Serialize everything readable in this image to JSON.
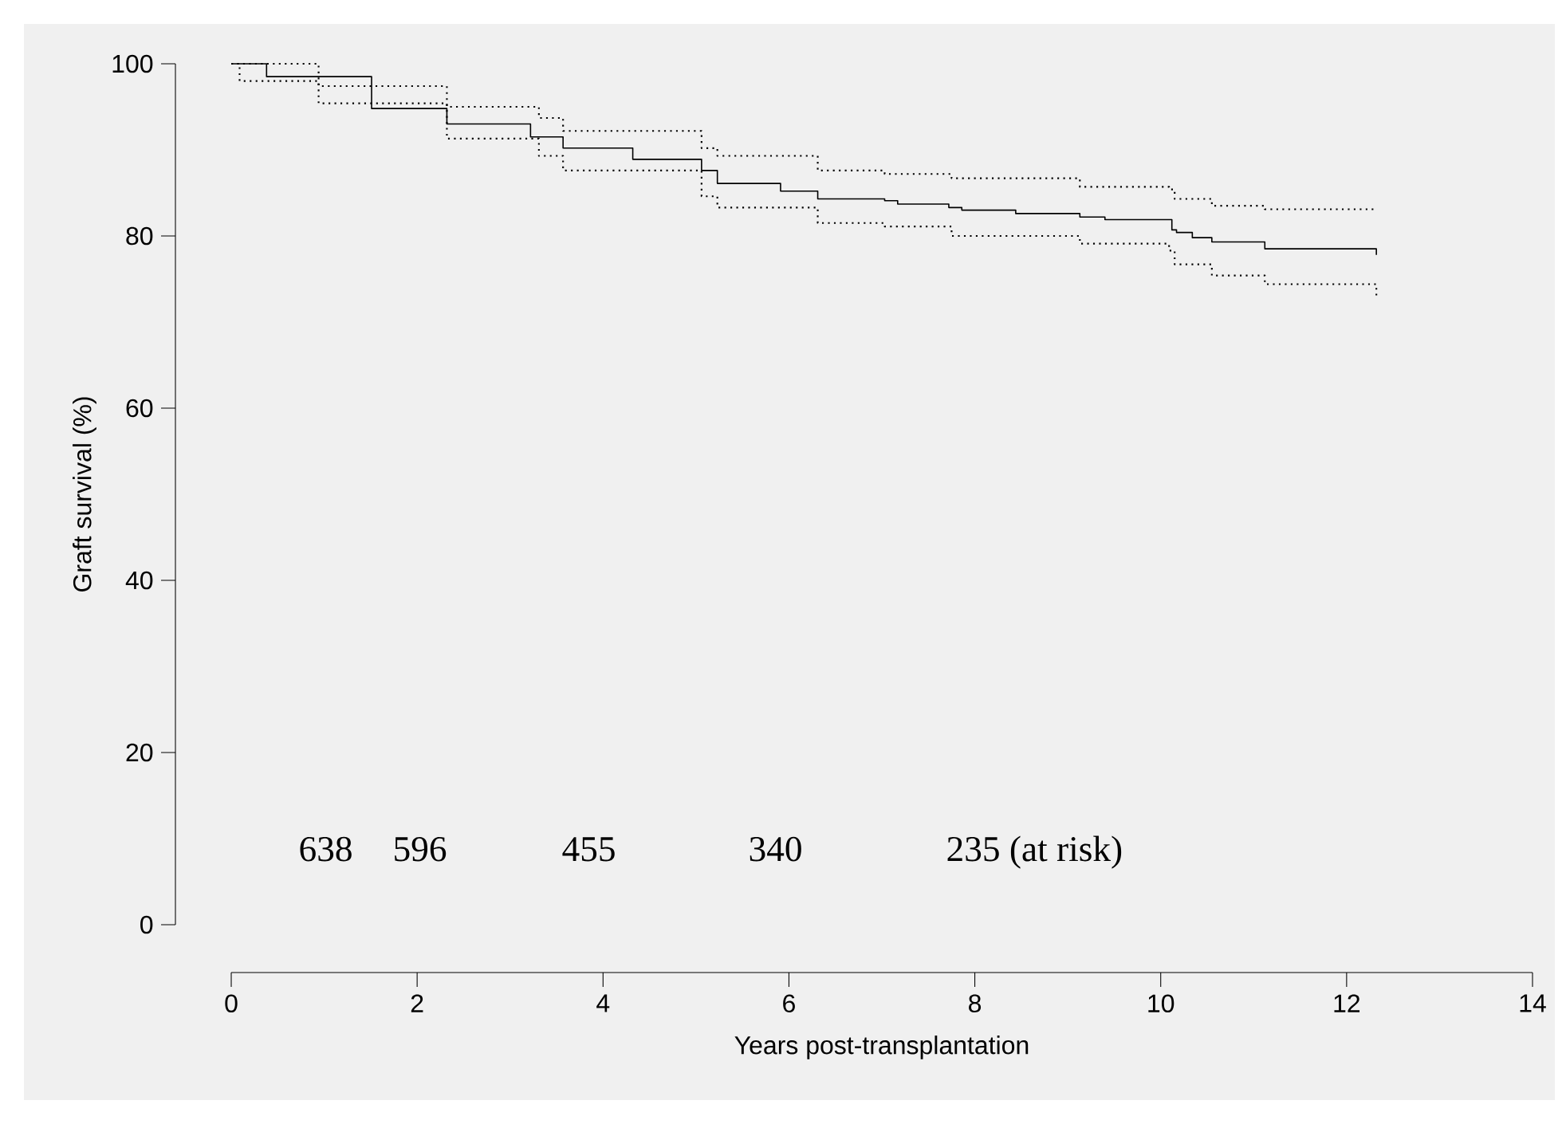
{
  "chart_data": {
    "type": "step",
    "xlabel": "Years post-transplantation",
    "ylabel": "Graft survival (%)",
    "xlim": [
      0,
      14
    ],
    "ylim": [
      0,
      100
    ],
    "xticks": [
      0,
      2,
      4,
      6,
      8,
      10,
      12,
      14
    ],
    "yticks": [
      0,
      20,
      40,
      60,
      80,
      100
    ],
    "series": [
      {
        "color": "#000000",
        "line_style": "solid",
        "x": [
          0,
          0.38,
          1.51,
          2.32,
          3.22,
          3.57,
          4.32,
          5.06,
          5.23,
          5.91,
          6.31,
          7.03,
          7.17,
          7.72,
          7.86,
          8.44,
          9.13,
          9.4,
          10.12,
          10.17,
          10.34,
          10.55,
          11.12,
          12.32
        ],
        "values": [
          100,
          98.5,
          94.8,
          93,
          91.5,
          90.2,
          88.9,
          87.6,
          86.1,
          85.2,
          84.3,
          84.1,
          83.7,
          83.3,
          83,
          82.6,
          82.2,
          81.9,
          80.7,
          80.4,
          79.8,
          79.3,
          78.5,
          77.8
        ]
      },
      {
        "color": "#000000",
        "line_style": "dotted",
        "x": [
          0,
          0.94,
          2.32,
          3.31,
          3.57,
          5.06,
          5.23,
          6.31,
          7.03,
          7.75,
          9.13,
          10.09,
          10.15,
          10.55,
          11.12,
          12.32
        ],
        "values": [
          100,
          97.4,
          95,
          93.7,
          92.2,
          90.2,
          89.3,
          87.6,
          87.2,
          86.7,
          85.7,
          85.4,
          84.3,
          83.5,
          83.1,
          83
        ]
      },
      {
        "color": "#000000",
        "line_style": "dotted",
        "x": [
          0,
          0.09,
          0.94,
          2.32,
          3.31,
          3.57,
          5.06,
          5.23,
          6.31,
          7.03,
          7.75,
          9.13,
          10.09,
          10.15,
          10.55,
          11.12,
          12.32
        ],
        "values": [
          100,
          98,
          95.4,
          91.3,
          89.3,
          87.6,
          84.6,
          83.3,
          81.5,
          81.1,
          80,
          79.1,
          78.3,
          76.7,
          75.4,
          74.4,
          73.1
        ]
      }
    ],
    "annotations": [
      "638",
      "596",
      "455",
      "340",
      "235 (at risk)"
    ]
  }
}
